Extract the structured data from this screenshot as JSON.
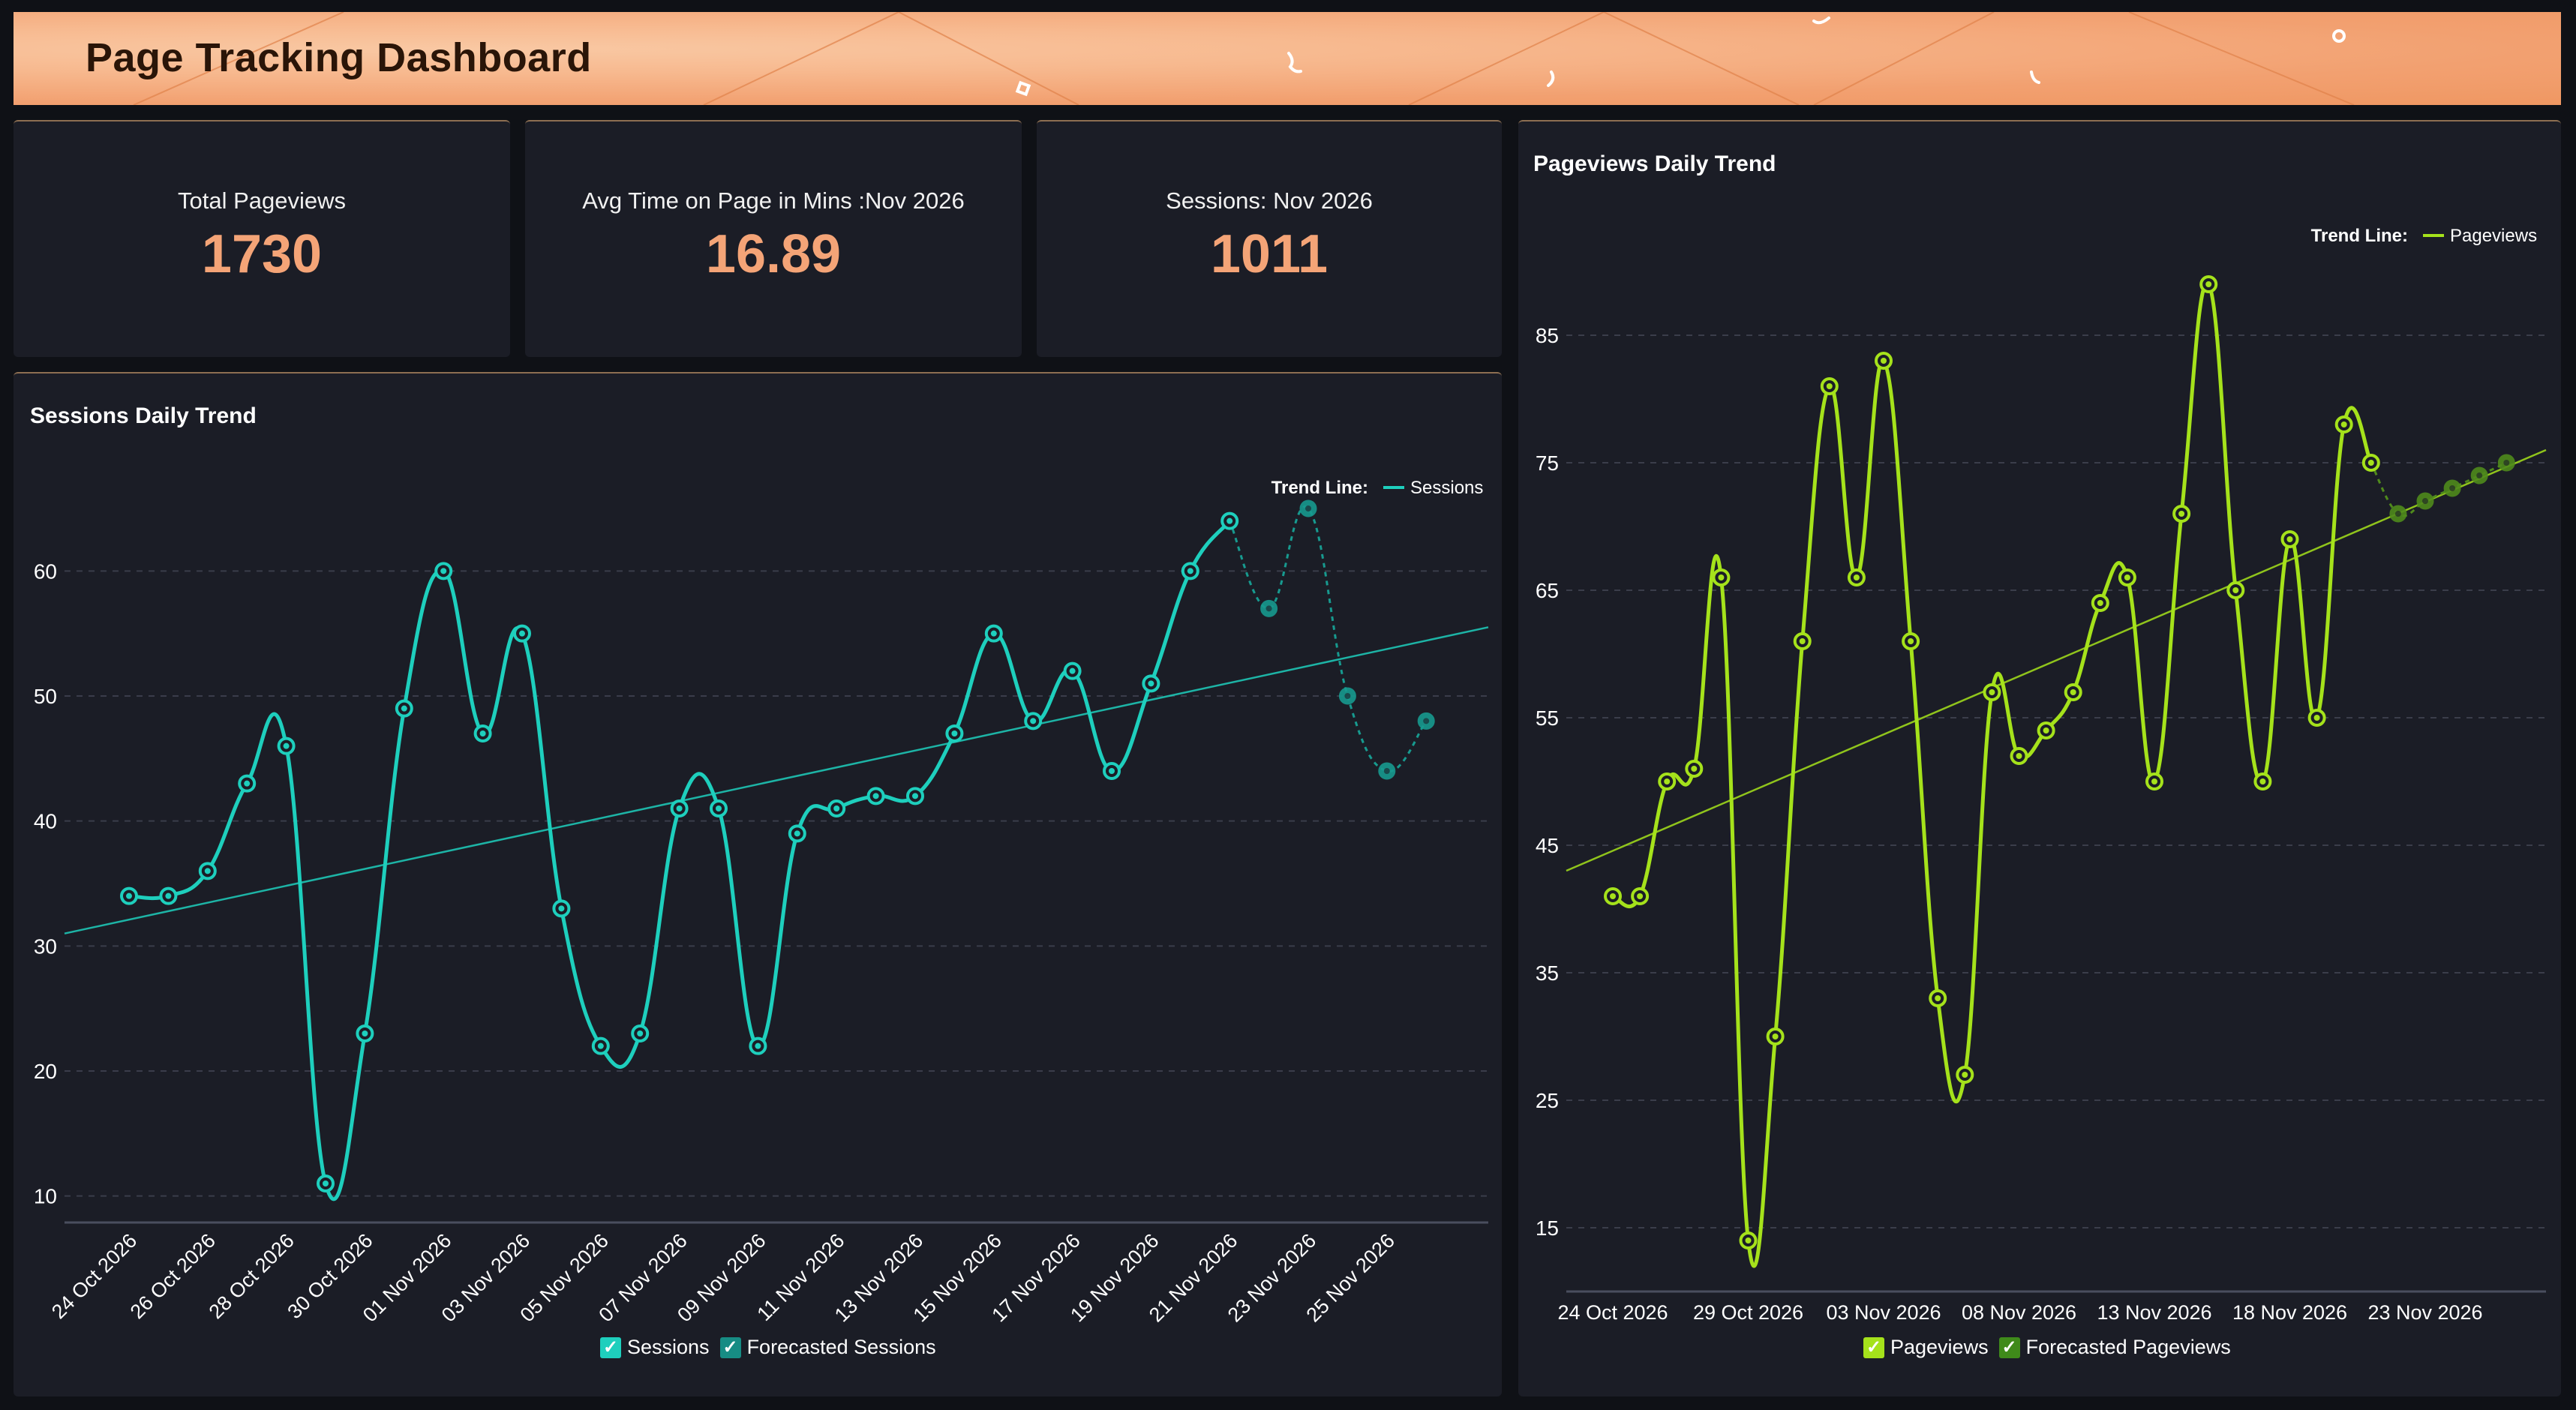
{
  "header": {
    "title": "Page Tracking Dashboard"
  },
  "kpis": [
    {
      "label": "Total Pageviews",
      "value": "1730"
    },
    {
      "label": "Avg Time on Page in Mins :Nov 2026",
      "value": "16.89"
    },
    {
      "label": "Sessions: Nov 2026",
      "value": "1011"
    }
  ],
  "colors": {
    "accent": "#f4a477",
    "sessions": "#1ecfbd",
    "sessions_forecast": "#179a8f",
    "pageviews": "#a5e21b",
    "pageviews_forecast": "#4f8a1c",
    "panel": "#1b1d26"
  },
  "sessions_chart": {
    "title": "Sessions Daily Trend",
    "trend_label": "Trend Line:",
    "trend_series": "Sessions",
    "legend": [
      "Sessions",
      "Forecasted Sessions"
    ]
  },
  "pageviews_chart": {
    "title": "Pageviews Daily Trend",
    "trend_label": "Trend Line:",
    "trend_series": "Pageviews",
    "legend": [
      "Pageviews",
      "Forecasted Pageviews"
    ]
  },
  "chart_data": [
    {
      "type": "line",
      "title": "Sessions Daily Trend",
      "y_ticks": [
        10,
        20,
        30,
        40,
        50,
        60
      ],
      "ylim": [
        8,
        68
      ],
      "x_tick_labels": [
        "24 Oct 2026",
        "26 Oct 2026",
        "28 Oct 2026",
        "30 Oct 2026",
        "01 Nov 2026",
        "03 Nov 2026",
        "05 Nov 2026",
        "07 Nov 2026",
        "09 Nov 2026",
        "11 Nov 2026",
        "13 Nov 2026",
        "15 Nov 2026",
        "17 Nov 2026",
        "19 Nov 2026",
        "21 Nov 2026",
        "23 Nov 2026",
        "25 Nov 2026"
      ],
      "x_start": "24 Oct 2026",
      "series": [
        {
          "name": "Sessions",
          "values": [
            34,
            34,
            36,
            43,
            46,
            11,
            23,
            49,
            60,
            47,
            55,
            33,
            22,
            23,
            41,
            41,
            22,
            39,
            41,
            42,
            42,
            47,
            55,
            48,
            52,
            44,
            51,
            60,
            64
          ]
        },
        {
          "name": "Forecasted Sessions",
          "values": [
            64,
            57,
            65,
            50,
            44,
            48
          ]
        }
      ],
      "trend_line": {
        "name": "Sessions",
        "start": 31,
        "end": 55.5
      },
      "grid": true,
      "legend": "top-right"
    },
    {
      "type": "line",
      "title": "Pageviews Daily Trend",
      "y_ticks": [
        15,
        25,
        35,
        45,
        55,
        65,
        75,
        85
      ],
      "ylim": [
        10,
        90
      ],
      "x_tick_labels": [
        "24 Oct 2026",
        "29 Oct 2026",
        "03 Nov 2026",
        "08 Nov 2026",
        "13 Nov 2026",
        "18 Nov 2026",
        "23 Nov 2026"
      ],
      "x_start": "24 Oct 2026",
      "series": [
        {
          "name": "Pageviews",
          "values": [
            41,
            41,
            50,
            51,
            66,
            14,
            30,
            61,
            81,
            66,
            83,
            61,
            33,
            27,
            57,
            52,
            54,
            57,
            64,
            66,
            50,
            71,
            89,
            65,
            50,
            69,
            55,
            78,
            75
          ]
        },
        {
          "name": "Forecasted Pageviews",
          "values": [
            75,
            71,
            72,
            73,
            74,
            75
          ]
        }
      ],
      "trend_line": {
        "name": "Pageviews",
        "start": 43,
        "end": 76
      },
      "grid": true,
      "legend": "top-right"
    }
  ]
}
